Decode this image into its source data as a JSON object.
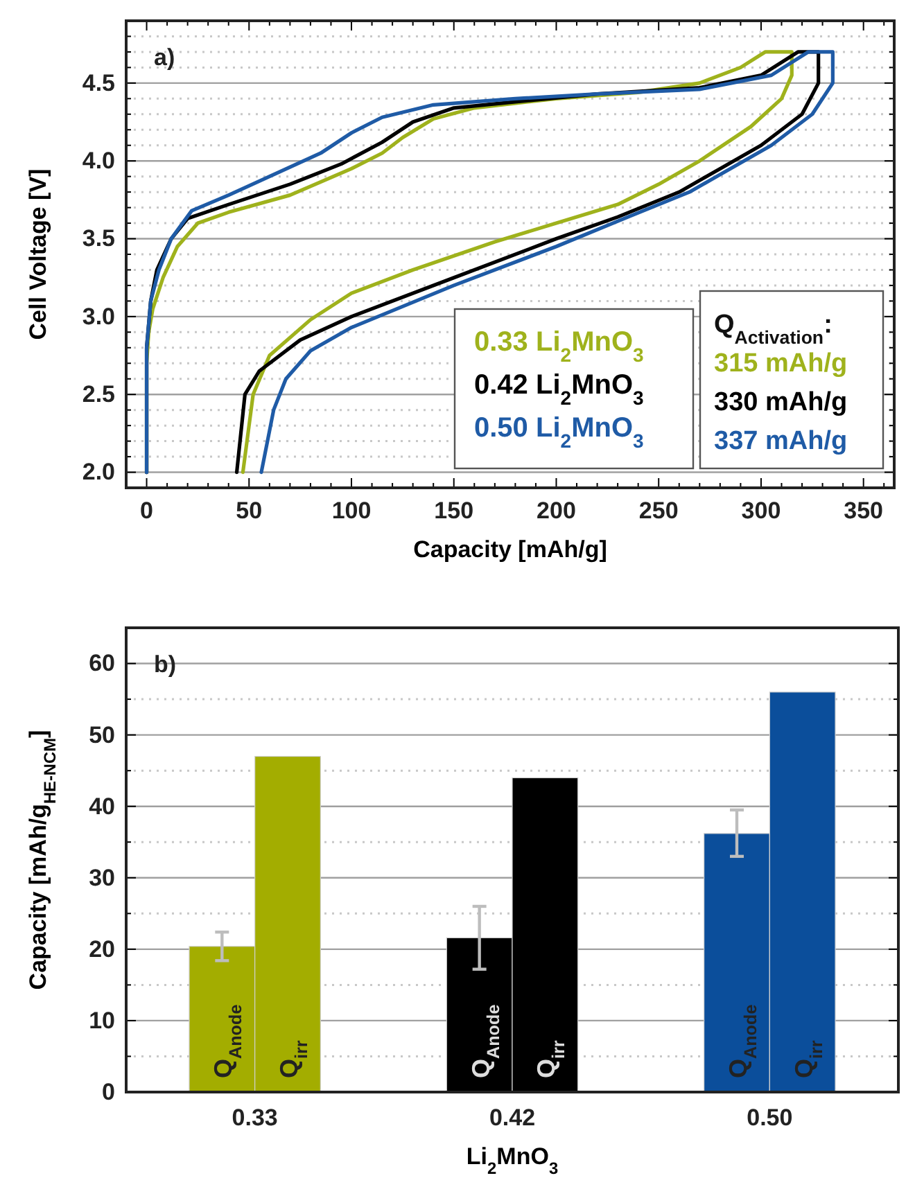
{
  "chart_data": [
    {
      "type": "line",
      "xlabel": "Capacity [mAh/g]",
      "ylabel": "Cell Voltage [V]",
      "xlim": [
        -10,
        365
      ],
      "ylim": [
        1.9,
        4.9
      ],
      "xticks": [
        0,
        {
          "value": 10,
          "label": null
        },
        {
          "value": 20,
          "label": null
        },
        {
          "value": 30,
          "label": null
        },
        {
          "value": 40,
          "label": null
        },
        50,
        {
          "value": 60,
          "label": null
        },
        {
          "value": 70,
          "label": null
        },
        {
          "value": 80,
          "label": null
        },
        {
          "value": 90,
          "label": null
        },
        100,
        {
          "value": 110,
          "label": null
        },
        {
          "value": 120,
          "label": null
        },
        {
          "value": 130,
          "label": null
        },
        {
          "value": 140,
          "label": null
        },
        150,
        {
          "value": 160,
          "label": null
        },
        {
          "value": 170,
          "label": null
        },
        {
          "value": 180,
          "label": null
        },
        {
          "value": 190,
          "label": null
        },
        200,
        {
          "value": 210,
          "label": null
        },
        {
          "value": 220,
          "label": null
        },
        {
          "value": 230,
          "label": null
        },
        {
          "value": 240,
          "label": null
        },
        250,
        {
          "value": 260,
          "label": null
        },
        {
          "value": 270,
          "label": null
        },
        {
          "value": 280,
          "label": null
        },
        {
          "value": 290,
          "label": null
        },
        300,
        {
          "value": 310,
          "label": null
        },
        {
          "value": 320,
          "label": null
        },
        {
          "value": 330,
          "label": null
        },
        {
          "value": 340,
          "label": null
        },
        350,
        {
          "value": 360,
          "label": null
        }
      ],
      "yticks": [
        {
          "value": 2,
          "label": "2.0"
        },
        {
          "value": 2.1,
          "label": null
        },
        {
          "value": 2.2,
          "label": null
        },
        {
          "value": 2.3,
          "label": null
        },
        {
          "value": 2.4,
          "label": null
        },
        2.5,
        {
          "value": 2.6,
          "label": null
        },
        {
          "value": 2.7,
          "label": null
        },
        {
          "value": 2.8,
          "label": null
        },
        {
          "value": 2.9,
          "label": null
        },
        {
          "value": 3,
          "label": "3.0"
        },
        {
          "value": 3.1,
          "label": null
        },
        {
          "value": 3.2,
          "label": null
        },
        {
          "value": 3.3,
          "label": null
        },
        {
          "value": 3.4,
          "label": null
        },
        3.5,
        {
          "value": 3.6,
          "label": null
        },
        {
          "value": 3.7,
          "label": null
        },
        {
          "value": 3.8,
          "label": null
        },
        {
          "value": 3.9,
          "label": null
        },
        {
          "value": 4,
          "label": "4.0"
        },
        {
          "value": 4.1,
          "label": null
        },
        {
          "value": 4.2,
          "label": null
        },
        {
          "value": 4.3,
          "label": null
        },
        {
          "value": 4.4,
          "label": null
        },
        4.5,
        {
          "value": 4.6,
          "label": null
        },
        {
          "value": 4.7,
          "label": null
        },
        {
          "value": 4.8,
          "label": null
        }
      ],
      "grid": "y",
      "legend": "bottom right",
      "line_style": "solid",
      "annotations": [
        "a)",
        "Q$_{Activation}$:",
        "315 mAh/g",
        "330 mAh/g",
        "337 mAh/g"
      ],
      "series": [
        {
          "name": "0.33 Li$_{2}$MnO$_{3}$",
          "color": "#9fb21c",
          "x": [
            0,
            0,
            1,
            3,
            8,
            15,
            25,
            40,
            70,
            100,
            115,
            125,
            140,
            160,
            200,
            240,
            270,
            290,
            302,
            315,
            315,
            310,
            295,
            270,
            250,
            230,
            200,
            170,
            130,
            100,
            80,
            60,
            52,
            47
          ],
          "values": [
            2.0,
            2.7,
            2.9,
            3.05,
            3.25,
            3.45,
            3.6,
            3.67,
            3.78,
            3.95,
            4.05,
            4.15,
            4.27,
            4.34,
            4.4,
            4.44,
            4.5,
            4.6,
            4.7,
            4.7,
            4.55,
            4.4,
            4.22,
            4.0,
            3.85,
            3.72,
            3.6,
            3.48,
            3.3,
            3.15,
            2.98,
            2.75,
            2.5,
            2.0
          ]
        },
        {
          "name": "0.42 Li$_{2}$MnO$_{3}$",
          "color": "#000000",
          "x": [
            0,
            0,
            2,
            5,
            12,
            20,
            40,
            70,
            95,
            115,
            130,
            150,
            180,
            220,
            270,
            300,
            318,
            328,
            328,
            320,
            300,
            280,
            260,
            230,
            200,
            150,
            100,
            75,
            55,
            48,
            44
          ],
          "values": [
            2.0,
            2.8,
            3.1,
            3.3,
            3.5,
            3.63,
            3.72,
            3.85,
            3.98,
            4.12,
            4.25,
            4.34,
            4.38,
            4.43,
            4.47,
            4.55,
            4.7,
            4.7,
            4.5,
            4.3,
            4.1,
            3.95,
            3.8,
            3.64,
            3.5,
            3.25,
            3.0,
            2.85,
            2.65,
            2.5,
            2.0
          ]
        },
        {
          "name": "0.50 Li$_{2}$MnO$_{3}$",
          "color": "#1f5ba6",
          "x": [
            0,
            0,
            2,
            6,
            12,
            22,
            40,
            60,
            85,
            100,
            115,
            140,
            180,
            220,
            270,
            305,
            323,
            335,
            335,
            325,
            305,
            285,
            265,
            235,
            200,
            150,
            100,
            80,
            68,
            62,
            56
          ],
          "values": [
            2.0,
            2.8,
            3.1,
            3.3,
            3.5,
            3.68,
            3.78,
            3.9,
            4.05,
            4.18,
            4.28,
            4.36,
            4.4,
            4.43,
            4.46,
            4.55,
            4.7,
            4.7,
            4.5,
            4.3,
            4.1,
            3.95,
            3.8,
            3.64,
            3.45,
            3.2,
            2.93,
            2.78,
            2.6,
            2.4,
            2.0
          ]
        }
      ]
    },
    {
      "type": "bar",
      "xlabel": "Li$_{2}$MnO$_{3}$",
      "ylabel": "Capacity [mAh/g$_{HE-NCM}$]",
      "categories": [
        "0.33",
        "0.42",
        "0.50"
      ],
      "ylim": [
        0,
        65
      ],
      "yticks": [
        0,
        {
          "value": 5,
          "label": null
        },
        10,
        {
          "value": 15,
          "label": null
        },
        20,
        {
          "value": 25,
          "label": null
        },
        30,
        {
          "value": 35,
          "label": null
        },
        40,
        {
          "value": 45,
          "label": null
        },
        50,
        {
          "value": 55,
          "label": null
        },
        60
      ],
      "grid": "y",
      "annotations": [
        "b)"
      ],
      "series": [
        {
          "name": "Q$_{Anode}$",
          "colors": [
            "#a3ad00",
            "#000000",
            "#0b4e9b"
          ],
          "values": [
            20.4,
            21.6,
            36.2
          ],
          "errors": [
            [
              18.4,
              22.4
            ],
            [
              17.2,
              26
            ],
            [
              33,
              39.5
            ]
          ]
        },
        {
          "name": "Q$_{irr}$",
          "colors": [
            "#a3ad00",
            "#000000",
            "#0b4e9b"
          ],
          "values": [
            47,
            44,
            56
          ]
        }
      ]
    }
  ]
}
